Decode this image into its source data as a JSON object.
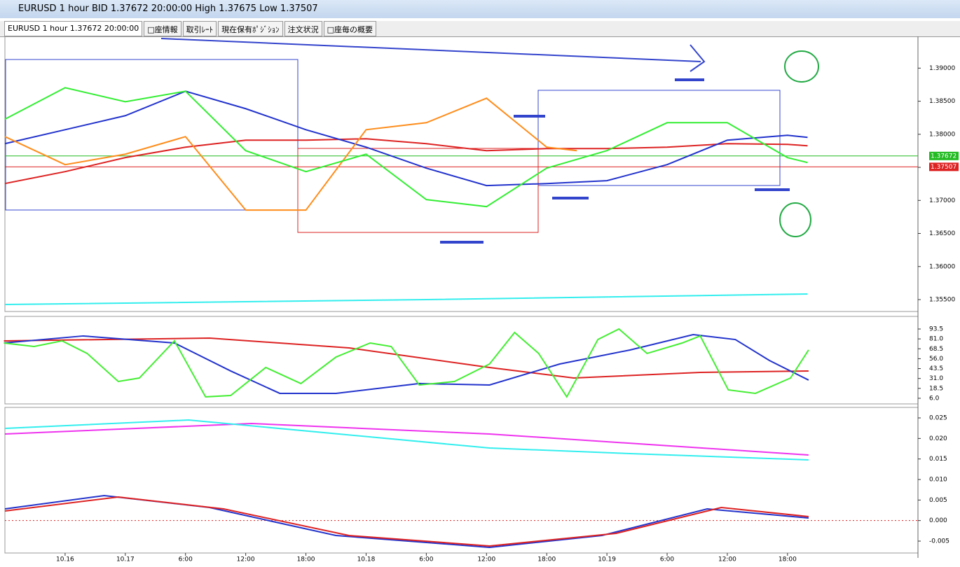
{
  "window": {
    "title": "EURUSD 1 hour BID 1.37672 20:00:00 High 1.37675 Low 1.37507"
  },
  "tabs": [
    "EURUSD 1 hour 1.37672 20:00:00",
    "□座情報",
    "取引ﾚｰﾄ",
    "現在保有ﾎﾟｼﾞｼｮﾝ",
    "注文状況",
    "□座毎の概要"
  ],
  "chart_data": [
    {
      "type": "line",
      "xlim": [
        -12,
        79
      ],
      "ylim": [
        1.3532,
        1.3948
      ],
      "yticks": [
        {
          "value": 1.39,
          "label": "1.39000"
        },
        {
          "value": 1.385,
          "label": "1.38500"
        },
        {
          "value": 1.38,
          "label": "1.38000"
        },
        {
          "value": 1.375,
          "label": "1.37500"
        },
        {
          "value": 1.37,
          "label": "1.37000"
        },
        {
          "value": 1.365,
          "label": "1.36500"
        },
        {
          "value": 1.36,
          "label": "1.36000"
        },
        {
          "value": 1.355,
          "label": "1.35500"
        }
      ],
      "hlines": [
        {
          "value": 1.37672,
          "color": "#22bb22"
        },
        {
          "value": 1.37507,
          "color": "#dd2222"
        }
      ],
      "series": [
        {
          "color": "#dd2222",
          "x": [
            -12,
            -6,
            0,
            6,
            12,
            18,
            24,
            30,
            36,
            42,
            48,
            54,
            60,
            66,
            68
          ],
          "values": [
            1.37255,
            1.37435,
            1.37647,
            1.37805,
            1.37911,
            1.37911,
            1.37932,
            1.37858,
            1.37752,
            1.37784,
            1.37784,
            1.37805,
            1.37858,
            1.37847,
            1.37826
          ]
        },
        {
          "color": "#2233cc",
          "x": [
            -12,
            -6,
            0,
            6,
            12,
            18,
            24,
            30,
            36,
            42,
            48,
            54,
            60,
            66,
            68
          ],
          "values": [
            1.37858,
            1.38069,
            1.38281,
            1.38651,
            1.38387,
            1.38069,
            1.37805,
            1.37488,
            1.37224,
            1.37255,
            1.37298,
            1.37541,
            1.37911,
            1.37985,
            1.37953
          ]
        },
        {
          "color": "#ff8c1a",
          "x": [
            -12,
            -6,
            0,
            6,
            12,
            18,
            24,
            30,
            36,
            42,
            45
          ],
          "values": [
            1.37964,
            1.37541,
            1.37699,
            1.37964,
            1.36853,
            1.36853,
            1.38069,
            1.38175,
            1.38545,
            1.37805,
            1.37752
          ]
        },
        {
          "color": "#33ee33",
          "x": [
            -12,
            -6,
            0,
            6,
            12,
            18,
            24,
            30,
            36,
            42,
            48,
            54,
            60,
            66,
            68
          ],
          "values": [
            1.38228,
            1.38704,
            1.38492,
            1.38651,
            1.37752,
            1.37435,
            1.37699,
            1.37012,
            1.36906,
            1.37488,
            1.37752,
            1.38175,
            1.38175,
            1.37647,
            1.37572
          ]
        },
        {
          "color": "#33eeee",
          "x": [
            -12,
            30,
            68
          ],
          "values": [
            1.35426,
            1.355,
            1.35585
          ]
        }
      ]
    },
    {
      "type": "line",
      "xlim": [
        -12,
        79
      ],
      "ylim": [
        -1.1,
        109.4
      ],
      "yticks": [
        {
          "value": 93.5,
          "label": "93.5"
        },
        {
          "value": 81,
          "label": "81.0"
        },
        68.5,
        {
          "value": 56,
          "label": "56.0"
        },
        43.5,
        {
          "value": 31,
          "label": "31.0"
        },
        18.5,
        {
          "value": 6,
          "label": "6.0"
        }
      ],
      "series": [
        {
          "color": "#dd2222",
          "x": [
            -12.1,
            8.4,
            22.3,
            36.3,
            44.7,
            57.3,
            68.1
          ],
          "values": [
            78.5,
            82.0,
            69.6,
            44.9,
            31.6,
            38.7,
            40.5
          ]
        },
        {
          "color": "#2233cc",
          "x": [
            -12.1,
            -4.2,
            4.9,
            10.5,
            15.4,
            21,
            29.3,
            36.3,
            43.3,
            50.3,
            56.6,
            60.8,
            64.2,
            68.1
          ],
          "values": [
            75.8,
            84.7,
            75.8,
            40.5,
            12.2,
            12.2,
            24.6,
            22.8,
            49.3,
            67.0,
            86.4,
            80.2,
            53.7,
            29.0
          ]
        },
        {
          "color": "#44ee33",
          "x": [
            -12.1,
            -9.1,
            -6.3,
            -3.8,
            -0.7,
            1.4,
            4.9,
            8.0,
            10.5,
            14.0,
            17.5,
            21.0,
            24.4,
            26.5,
            29.3,
            32.8,
            36.3,
            38.8,
            41.2,
            44.0,
            47.1,
            49.2,
            52.0,
            55.5,
            57.3,
            60.1,
            62.8,
            66.3,
            68.1
          ],
          "values": [
            75.8,
            71.4,
            78.5,
            62.6,
            27.2,
            31.6,
            78.5,
            7.8,
            9.5,
            44.9,
            24.6,
            58.1,
            75.8,
            71.4,
            22.8,
            27.2,
            49.3,
            89.1,
            62.6,
            7.8,
            80.2,
            93.5,
            62.6,
            75.8,
            84.7,
            16.6,
            12.2,
            31.6,
            67.0
          ]
        }
      ]
    },
    {
      "type": "line",
      "xlim": [
        -12,
        79
      ],
      "ylim": [
        -0.0079,
        0.02756
      ],
      "yticks": [
        0.025,
        {
          "value": 0.02,
          "label": "0.020"
        },
        0.015,
        {
          "value": 0.01,
          "label": "0.010"
        },
        0.005,
        {
          "value": 0,
          "label": "0.000"
        },
        -0.005
      ],
      "xticks": [
        {
          "value": -6,
          "label": "10.16"
        },
        {
          "value": 0,
          "label": "10.17"
        },
        {
          "value": 6,
          "label": "6:00"
        },
        {
          "value": 12,
          "label": "12:00"
        },
        {
          "value": 18,
          "label": "18:00"
        },
        {
          "value": 24,
          "label": "10.18"
        },
        {
          "value": 30,
          "label": "6:00"
        },
        {
          "value": 36,
          "label": "12:00"
        },
        {
          "value": 42,
          "label": "18:00"
        },
        {
          "value": 48,
          "label": "10.19"
        },
        {
          "value": 54,
          "label": "6:00"
        },
        {
          "value": 60,
          "label": "12:00"
        },
        {
          "value": 66,
          "label": "18:00"
        }
      ],
      "series": [
        {
          "color": "#ee33ee",
          "x": [
            -12,
            12.6,
            36.3,
            68.1
          ],
          "values": [
            0.02108,
            0.02364,
            0.02108,
            0.01597
          ]
        },
        {
          "color": "#33eeee",
          "x": [
            -12,
            6.3,
            36.3,
            50.3,
            68.1
          ],
          "values": [
            0.02244,
            0.02449,
            0.01767,
            0.01631,
            0.01477
          ]
        },
        {
          "color": "#2233cc",
          "x": [
            -12,
            -2.1,
            8.4,
            21,
            36.3,
            47.5,
            58,
            68.1
          ],
          "values": [
            0.00284,
            0.00608,
            0.00318,
            -0.00364,
            -0.00653,
            -0.00364,
            0.00284,
            0.00062
          ]
        },
        {
          "color": "#dd2222",
          "x": [
            -12,
            -0.7,
            9.8,
            22.3,
            36.3,
            48.9,
            59.4,
            68.1
          ],
          "values": [
            0.00233,
            0.00574,
            0.00284,
            -0.00364,
            -0.00619,
            -0.00313,
            0.00318,
            0.00097
          ]
        }
      ]
    }
  ]
}
